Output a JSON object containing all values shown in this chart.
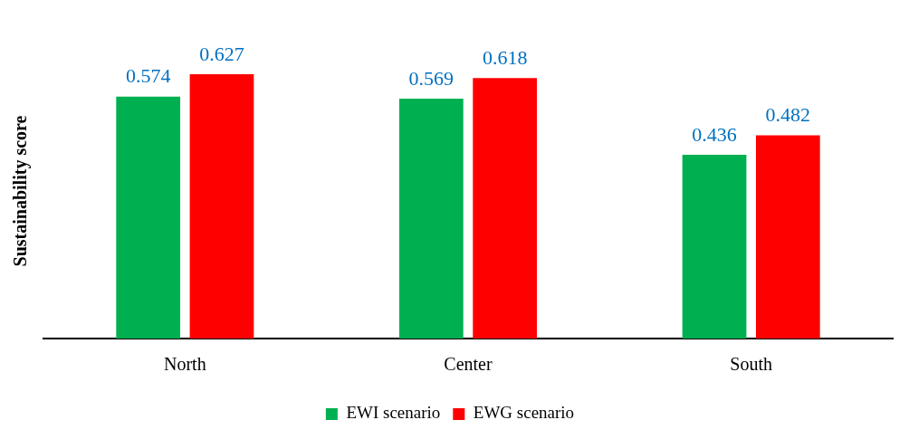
{
  "chart_data": {
    "type": "bar",
    "ylabel": "Sustainability score",
    "categories": [
      "North",
      "Center",
      "South"
    ],
    "series": [
      {
        "name": "EWI scenario",
        "color": "#00b050",
        "values": [
          0.574,
          0.569,
          0.436
        ]
      },
      {
        "name": "EWG scenario",
        "color": "#ff0000",
        "values": [
          0.627,
          0.618,
          0.482
        ]
      }
    ],
    "data_labels": true,
    "legend": "bottom",
    "grid": false
  }
}
